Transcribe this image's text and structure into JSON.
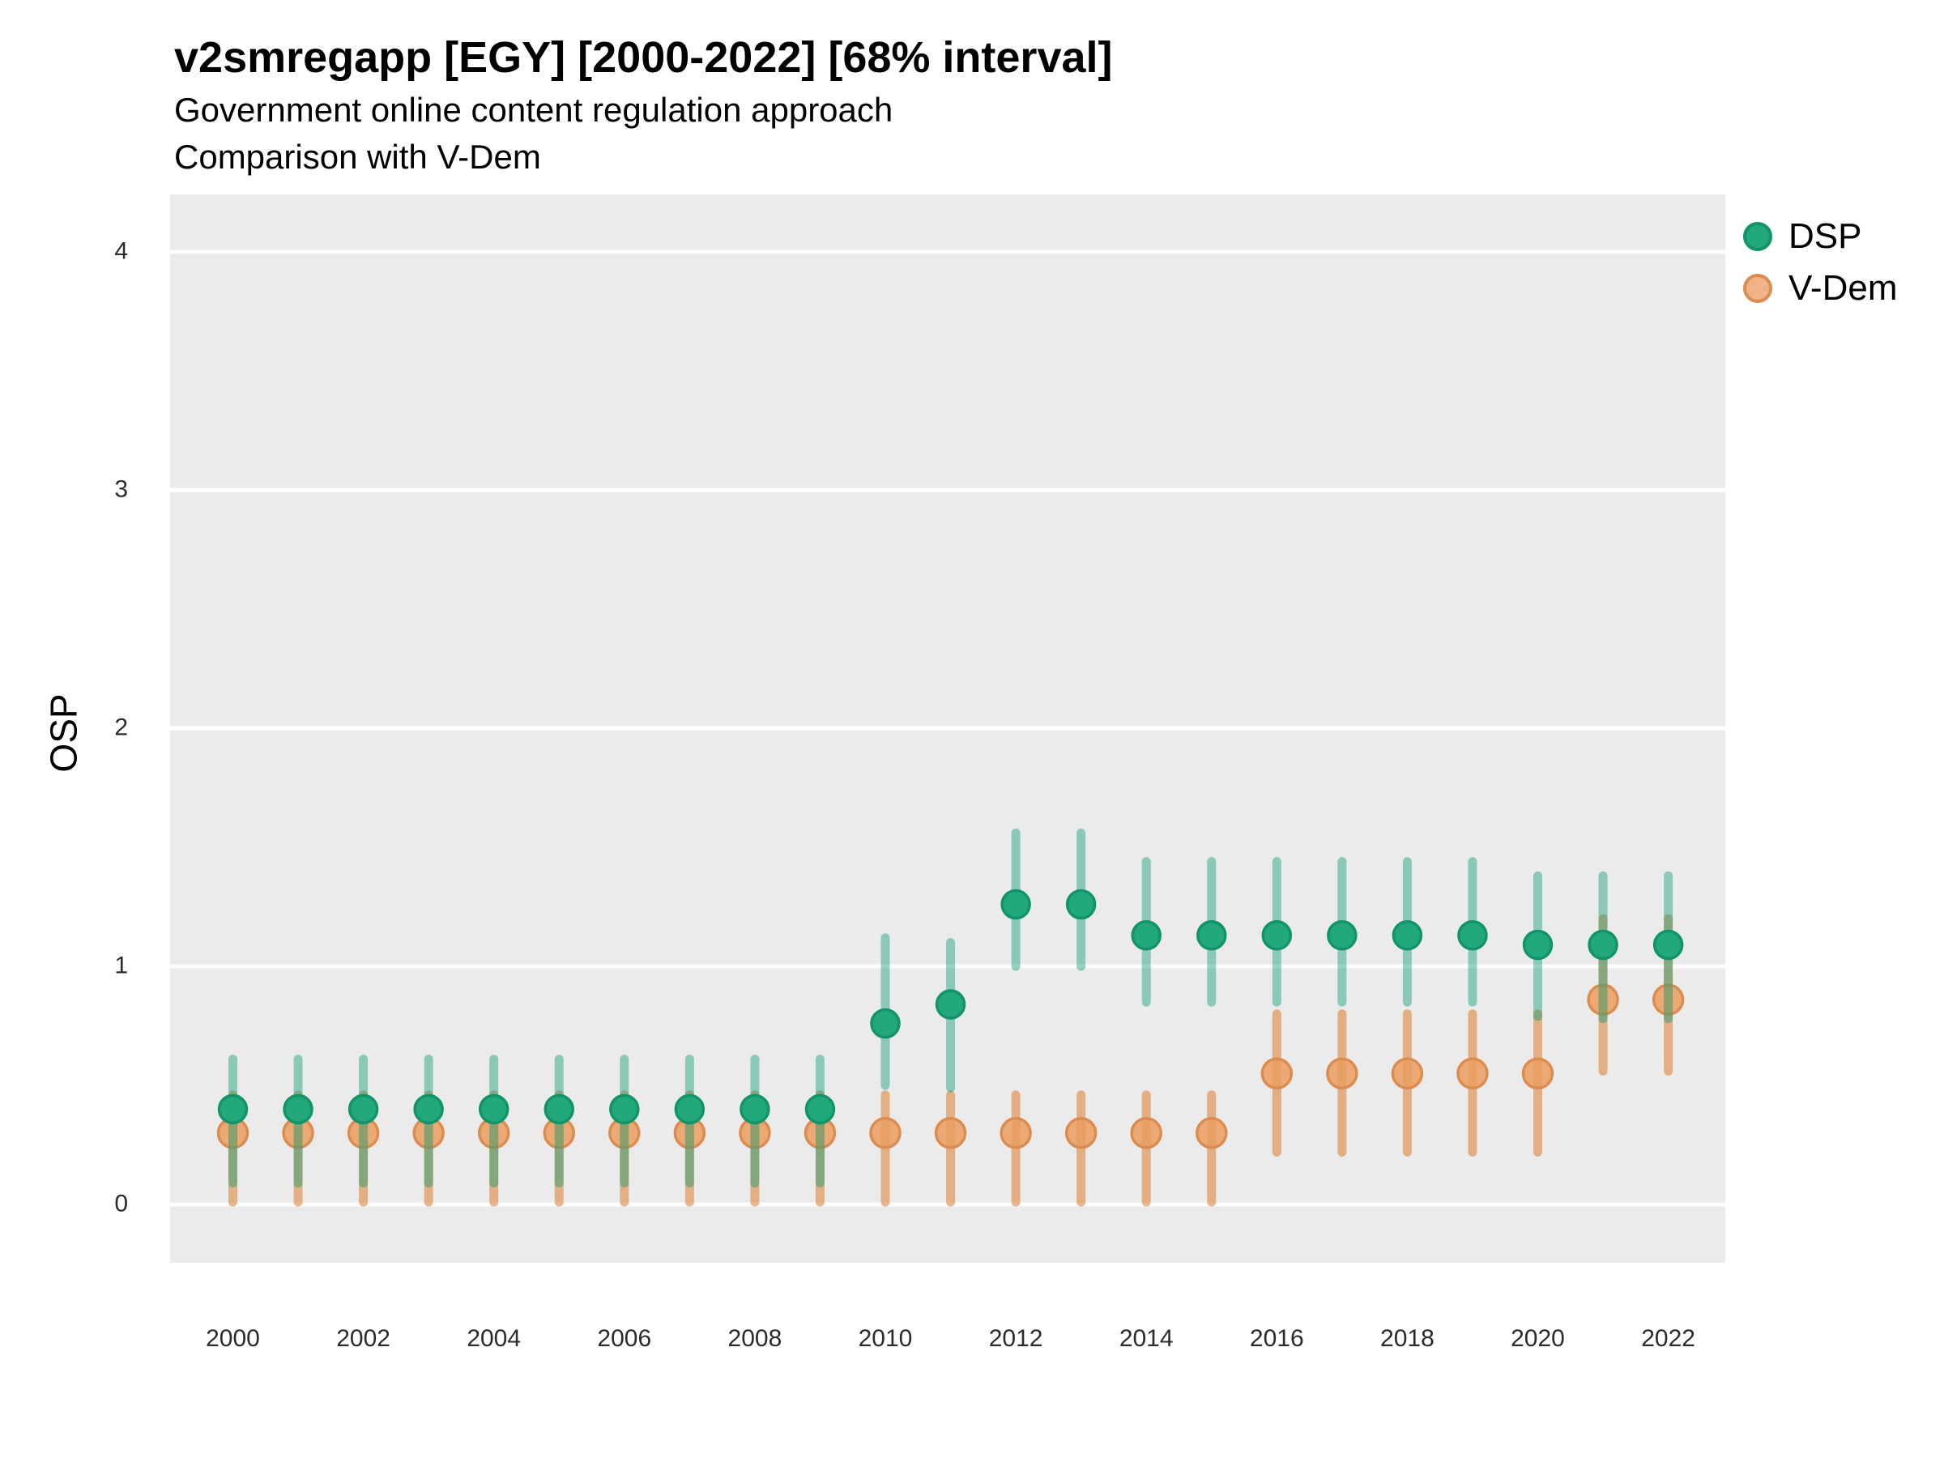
{
  "header": {
    "title": "v2smregapp [EGY] [2000-2022] [68% interval]",
    "subtitle": "Government online content regulation approach",
    "subtitle2": "Comparison with V-Dem"
  },
  "y_axis": {
    "label": "OSP",
    "ticks": [
      0,
      1,
      2,
      3,
      4
    ]
  },
  "x_axis": {
    "ticks": [
      2000,
      2002,
      2004,
      2006,
      2008,
      2010,
      2012,
      2014,
      2016,
      2018,
      2020,
      2022
    ]
  },
  "legend": {
    "position": "right",
    "items": [
      {
        "label": "DSP"
      },
      {
        "label": "V-Dem"
      }
    ]
  },
  "colors": {
    "panel_bg": "#EBEBEB",
    "gridline": "#FFFFFF",
    "dsp_point": "#23A77D",
    "dsp_point_border": "#12946B",
    "dsp_bar": "rgba(20,160,120,0.45)",
    "vdem_point": "rgba(234,157,96,0.85)",
    "vdem_point_border": "#DD8C50",
    "vdem_bar": "rgba(219,124,43,0.55)",
    "tick_text": "#2b2b2b"
  },
  "chart_data": {
    "type": "scatter",
    "subtype": "pointrange",
    "title": "v2smregapp [EGY] [2000-2022] [68% interval]",
    "subtitle": "Government online content regulation approach",
    "comparison_note": "Comparison with V-Dem",
    "interval": "68%",
    "xlabel": "",
    "ylabel": "OSP",
    "ylim": [
      -0.25,
      4.25
    ],
    "y_ticks": [
      0,
      1,
      2,
      3,
      4
    ],
    "grid": "horizontal-major-only",
    "legend_position": "right",
    "x": [
      2000,
      2001,
      2002,
      2003,
      2004,
      2005,
      2006,
      2007,
      2008,
      2009,
      2010,
      2011,
      2012,
      2013,
      2014,
      2015,
      2016,
      2017,
      2018,
      2019,
      2020,
      2021,
      2022
    ],
    "series": [
      {
        "name": "DSP",
        "values": [
          0.4,
          0.4,
          0.4,
          0.4,
          0.4,
          0.4,
          0.4,
          0.4,
          0.4,
          0.4,
          0.76,
          0.84,
          1.26,
          1.26,
          1.13,
          1.13,
          1.13,
          1.13,
          1.13,
          1.13,
          1.09,
          1.09,
          1.09
        ],
        "lo": [
          0.09,
          0.09,
          0.09,
          0.09,
          0.09,
          0.09,
          0.09,
          0.09,
          0.09,
          0.09,
          0.5,
          0.49,
          1.0,
          1.0,
          0.85,
          0.85,
          0.85,
          0.85,
          0.85,
          0.85,
          0.79,
          0.78,
          0.78
        ],
        "hi": [
          0.61,
          0.61,
          0.61,
          0.61,
          0.61,
          0.61,
          0.61,
          0.61,
          0.61,
          0.61,
          1.12,
          1.1,
          1.56,
          1.56,
          1.44,
          1.44,
          1.44,
          1.44,
          1.44,
          1.44,
          1.38,
          1.38,
          1.38
        ]
      },
      {
        "name": "V-Dem",
        "values": [
          0.3,
          0.3,
          0.3,
          0.3,
          0.3,
          0.3,
          0.3,
          0.3,
          0.3,
          0.3,
          0.3,
          0.3,
          0.3,
          0.3,
          0.3,
          0.3,
          0.55,
          0.55,
          0.55,
          0.55,
          0.55,
          0.86,
          0.86
        ],
        "lo": [
          0.01,
          0.01,
          0.01,
          0.01,
          0.01,
          0.01,
          0.01,
          0.01,
          0.01,
          0.01,
          0.01,
          0.01,
          0.01,
          0.01,
          0.01,
          0.01,
          0.22,
          0.22,
          0.22,
          0.22,
          0.22,
          0.56,
          0.56
        ],
        "hi": [
          0.46,
          0.46,
          0.46,
          0.46,
          0.46,
          0.46,
          0.46,
          0.46,
          0.46,
          0.46,
          0.46,
          0.46,
          0.46,
          0.46,
          0.46,
          0.46,
          0.8,
          0.8,
          0.8,
          0.8,
          0.8,
          1.2,
          1.2
        ]
      }
    ]
  }
}
